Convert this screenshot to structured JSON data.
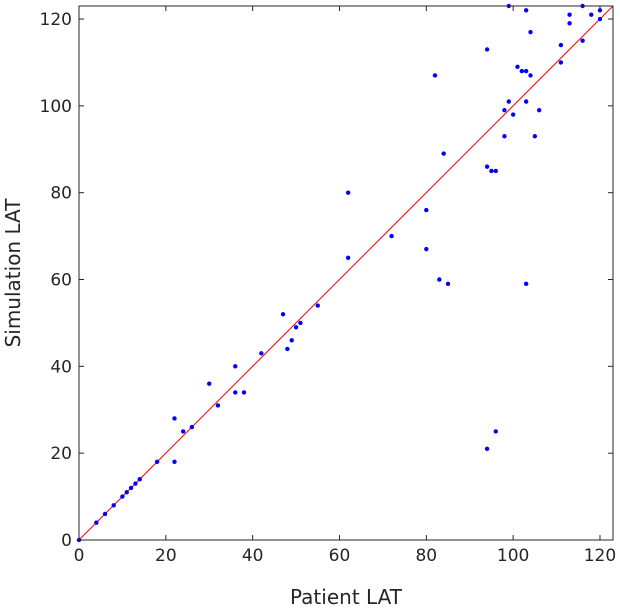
{
  "chart_data": {
    "type": "scatter",
    "xlabel": "Patient LAT",
    "ylabel": "Simulation LAT",
    "xlim": [
      0,
      123
    ],
    "ylim": [
      0,
      123
    ],
    "xticks": [
      0,
      20,
      40,
      60,
      80,
      100,
      120
    ],
    "yticks": [
      0,
      20,
      40,
      60,
      80,
      100,
      120
    ],
    "grid": false,
    "reference_line": {
      "from": [
        0,
        0
      ],
      "to": [
        123,
        123
      ],
      "color": "#ff0000"
    },
    "marker_color": "#0000ff",
    "series": [
      {
        "x": [
          0,
          4,
          6,
          8,
          10,
          11,
          12,
          13,
          14,
          18,
          22,
          22,
          24,
          26,
          30,
          32,
          36,
          36,
          38,
          42,
          47,
          48,
          49,
          50,
          51,
          55,
          62,
          62,
          72,
          80,
          80,
          82,
          83,
          84,
          85,
          94,
          94,
          94,
          95,
          96,
          96,
          98,
          98,
          99,
          99,
          100,
          101,
          102,
          103,
          103,
          103,
          103,
          104,
          104,
          105,
          106,
          111,
          111,
          113,
          113,
          116,
          116,
          118,
          120,
          120
        ],
        "y": [
          0,
          4,
          6,
          8,
          10,
          11,
          12,
          13,
          14,
          18,
          28,
          18,
          25,
          26,
          36,
          31,
          40,
          34,
          34,
          43,
          52,
          44,
          46,
          49,
          50,
          54,
          80,
          65,
          70,
          76,
          67,
          107,
          60,
          89,
          59,
          113,
          86,
          21,
          85,
          85,
          25,
          99,
          93,
          123,
          101,
          98,
          109,
          108,
          122,
          108,
          101,
          59,
          117,
          107,
          93,
          99,
          114,
          110,
          121,
          119,
          123,
          115,
          121,
          122,
          120
        ]
      }
    ]
  }
}
